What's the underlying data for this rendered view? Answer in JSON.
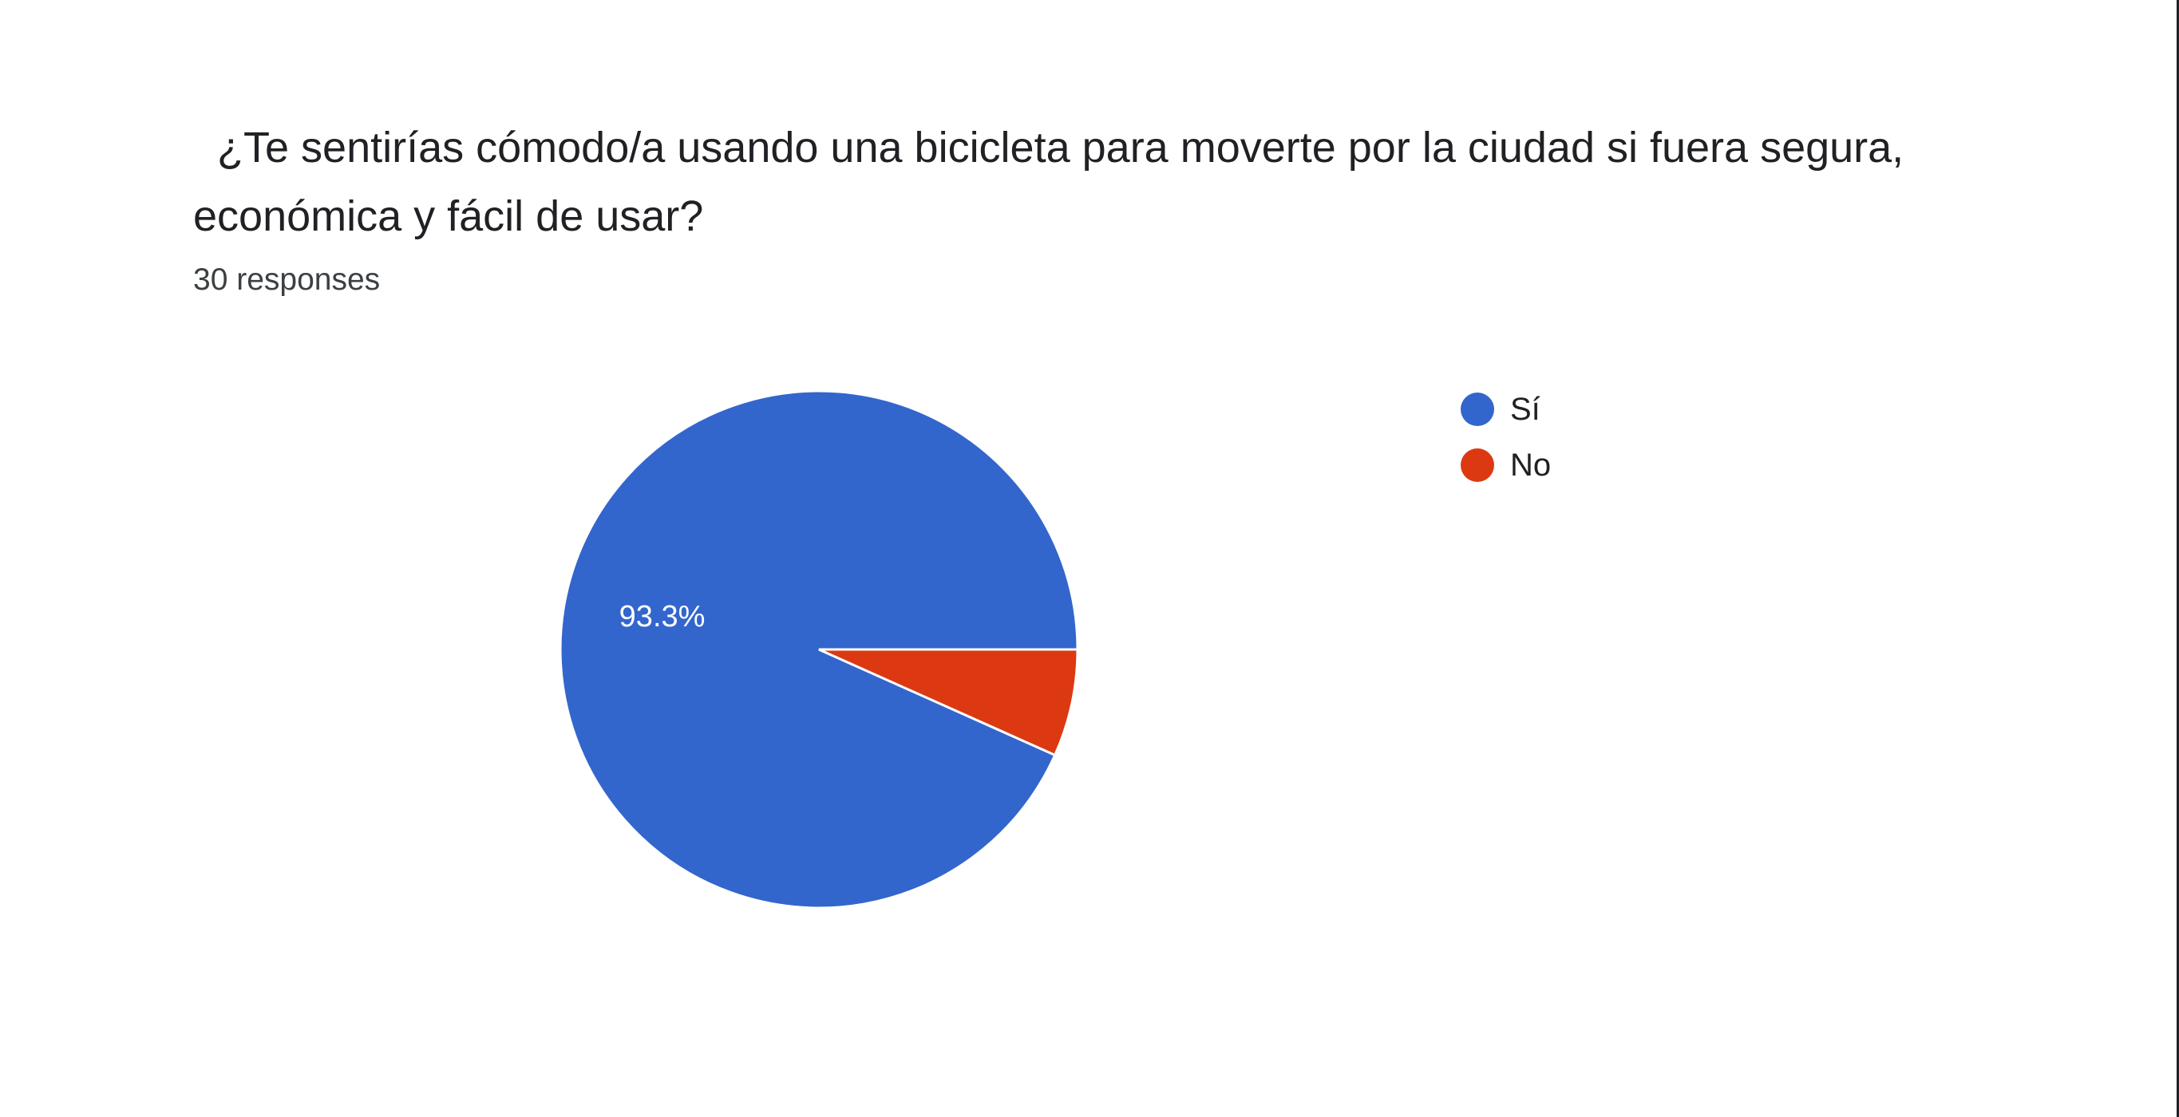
{
  "question": {
    "title": "  ¿Te sentirías cómodo/a usando una bicicleta para moverte por la ciudad si fuera segura, económica y fácil de usar?",
    "responses": "30 responses"
  },
  "chart_data": {
    "type": "pie",
    "title": "  ¿Te sentirías cómodo/a usando una bicicleta para moverte por la ciudad si fuera segura, económica y fácil de usar?",
    "subtitle": "30 responses",
    "categories": [
      "Sí",
      "No"
    ],
    "values": [
      93.3,
      6.7
    ],
    "data_labels": [
      "93.3%",
      ""
    ],
    "colors": [
      "#3366cc",
      "#dc3912"
    ],
    "legend": "right",
    "start_angle": "3 o'clock, counterclockwise"
  }
}
